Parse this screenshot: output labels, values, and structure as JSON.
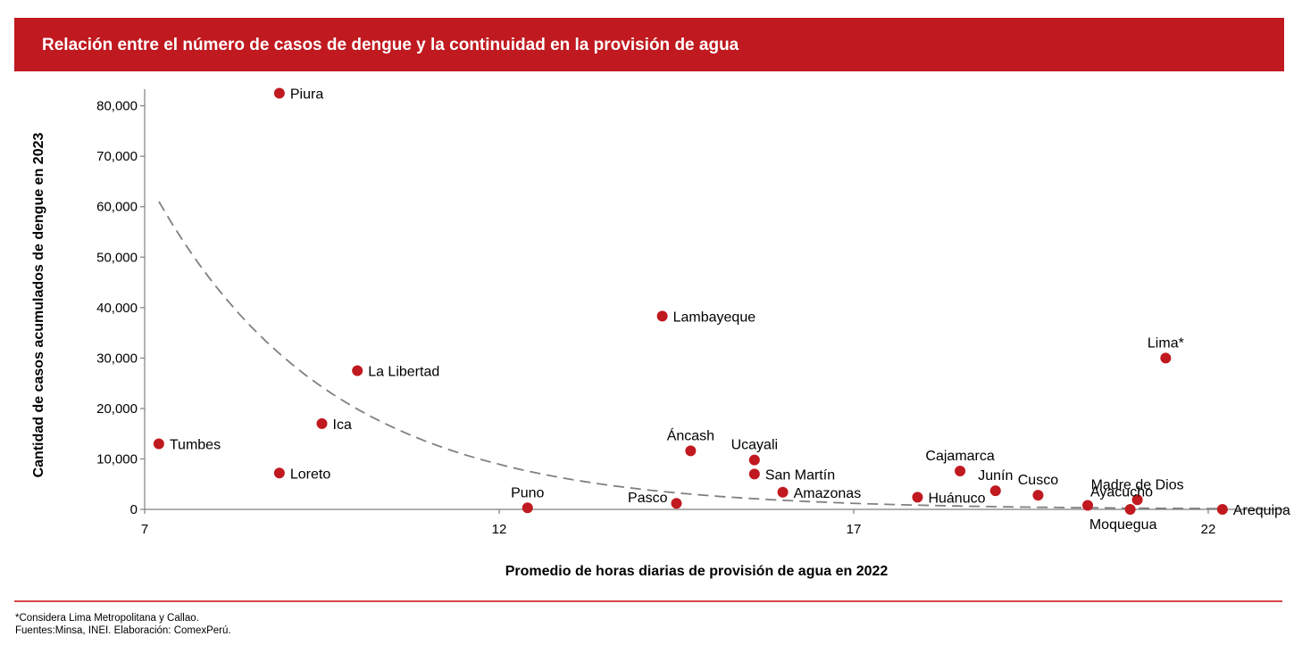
{
  "header": {
    "title": "Relación entre el número de casos de dengue y la continuidad en la provisión de agua"
  },
  "footer": {
    "note": "*Considera Lima Metropolitana y Callao.",
    "sources": "Fuentes:Minsa, INEI. Elaboración: ComexPerú."
  },
  "colors": {
    "brand": "#c0191f",
    "point": "#c0191f",
    "trend": "#808080"
  },
  "chart_data": {
    "type": "scatter",
    "title": "Relación entre el número de casos de dengue y la continuidad en la provisión de agua",
    "xlabel": "Promedio de horas diarias de provisión de agua en 2022",
    "ylabel": "Cantidad de casos acumulados de dengue en 2023",
    "xlim": [
      7,
      23.1
    ],
    "ylim": [
      0,
      85000
    ],
    "xticks": [
      7,
      12,
      17,
      22
    ],
    "yticks": [
      0,
      10000,
      20000,
      30000,
      40000,
      50000,
      60000,
      70000,
      80000
    ],
    "ytick_labels": [
      "0",
      "10,000",
      "20,000",
      "30,000",
      "40,000",
      "50,000",
      "60,000",
      "70,000",
      "80,000"
    ],
    "grid": false,
    "points": [
      {
        "label": "Piura",
        "x": 8.9,
        "y": 82500,
        "label_pos": "right"
      },
      {
        "label": "Tumbes",
        "x": 7.2,
        "y": 13000,
        "label_pos": "right"
      },
      {
        "label": "Loreto",
        "x": 8.9,
        "y": 7200,
        "label_pos": "right"
      },
      {
        "label": "Ica",
        "x": 9.5,
        "y": 17000,
        "label_pos": "right"
      },
      {
        "label": "La Libertad",
        "x": 10.0,
        "y": 27500,
        "label_pos": "right"
      },
      {
        "label": "Puno",
        "x": 12.4,
        "y": 300,
        "label_pos": "above"
      },
      {
        "label": "Lambayeque",
        "x": 14.3,
        "y": 38300,
        "label_pos": "right"
      },
      {
        "label": "Pasco",
        "x": 14.5,
        "y": 1200,
        "label_pos": "left"
      },
      {
        "label": "Áncash",
        "x": 14.7,
        "y": 11600,
        "label_pos": "above"
      },
      {
        "label": "Ucayali",
        "x": 15.6,
        "y": 9800,
        "label_pos": "above"
      },
      {
        "label": "San Martín",
        "x": 15.6,
        "y": 7000,
        "label_pos": "right"
      },
      {
        "label": "Amazonas",
        "x": 16.0,
        "y": 3400,
        "label_pos": "right"
      },
      {
        "label": "Huánuco",
        "x": 17.9,
        "y": 2400,
        "label_pos": "right"
      },
      {
        "label": "Cajamarca",
        "x": 18.5,
        "y": 7600,
        "label_pos": "above"
      },
      {
        "label": "Junín",
        "x": 19.0,
        "y": 3700,
        "label_pos": "above"
      },
      {
        "label": "Cusco",
        "x": 19.6,
        "y": 2800,
        "label_pos": "above"
      },
      {
        "label": "Ayacucho",
        "x": 20.3,
        "y": 800,
        "label_pos": "above-right"
      },
      {
        "label": "Moquegua",
        "x": 20.9,
        "y": 0,
        "label_pos": "below"
      },
      {
        "label": "Madre de Dios",
        "x": 21.0,
        "y": 1900,
        "label_pos": "above"
      },
      {
        "label": "Lima*",
        "x": 21.4,
        "y": 30000,
        "label_pos": "above"
      },
      {
        "label": "Arequipa",
        "x": 22.2,
        "y": 0,
        "label_pos": "right"
      }
    ],
    "trendline": {
      "type": "exponential",
      "style": "dashed",
      "x_start": 7.2,
      "x_end": 22.2,
      "y_start": 61000,
      "y_end": 150
    }
  }
}
